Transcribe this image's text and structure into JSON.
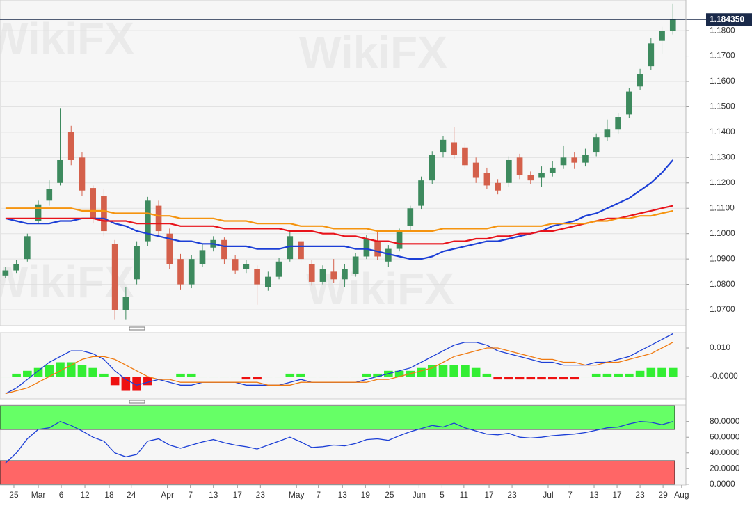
{
  "chart_data": [
    {
      "type": "candlestick",
      "watermark": "WikiFX",
      "xlim": [
        0,
        62.5
      ],
      "ylim": [
        1.0637,
        1.1921
      ],
      "yticks": [
        {
          "value": 1.07,
          "label": "1.0700"
        },
        {
          "value": 1.08,
          "label": "1.0800"
        },
        {
          "value": 1.09,
          "label": "1.0900"
        },
        {
          "value": 1.1,
          "label": "1.1000"
        },
        {
          "value": 1.11,
          "label": "1.1100"
        },
        {
          "value": 1.12,
          "label": "1.1200"
        },
        {
          "value": 1.13,
          "label": "1.1300"
        },
        {
          "value": 1.14,
          "label": "1.1400"
        },
        {
          "value": 1.15,
          "label": "1.1500"
        },
        {
          "value": 1.16,
          "label": "1.1600"
        },
        {
          "value": 1.17,
          "label": "1.1700"
        },
        {
          "value": 1.18,
          "label": "1.1800"
        }
      ],
      "grid": true,
      "last_price": {
        "value": 1.18435,
        "label": "1.184350"
      },
      "up_color": "#3d8a5e",
      "down_color": "#d4604b",
      "open": [
        1.0835,
        1.0855,
        1.09,
        1.105,
        1.113,
        1.12,
        1.14,
        1.13,
        1.118,
        1.115,
        1.096,
        1.07,
        1.082,
        1.097,
        1.111,
        1.1,
        1.09,
        1.08,
        1.088,
        1.0945,
        1.0975,
        1.09,
        1.086,
        1.086,
        1.079,
        1.083,
        1.09,
        1.097,
        1.088,
        1.081,
        1.085,
        1.082,
        1.084,
        1.091,
        1.097,
        1.089,
        1.094,
        1.103,
        1.111,
        1.121,
        1.132,
        1.136,
        1.134,
        1.128,
        1.124,
        1.12,
        1.12,
        1.13,
        1.123,
        1.122,
        1.124,
        1.127,
        1.13,
        1.128,
        1.132,
        1.138,
        1.141,
        1.147,
        1.158,
        1.166,
        1.176,
        1.18
      ],
      "high": [
        1.087,
        1.0895,
        1.1,
        1.113,
        1.121,
        1.1495,
        1.1425,
        1.132,
        1.119,
        1.1175,
        1.0975,
        1.079,
        1.097,
        1.1145,
        1.113,
        1.102,
        1.092,
        1.0915,
        1.096,
        1.099,
        1.0985,
        1.0915,
        1.0895,
        1.0875,
        1.085,
        1.0905,
        1.1015,
        1.0985,
        1.0895,
        1.0875,
        1.09,
        1.088,
        1.0925,
        1.0995,
        1.1005,
        1.0955,
        1.102,
        1.111,
        1.1225,
        1.1325,
        1.1385,
        1.142,
        1.1355,
        1.13,
        1.126,
        1.1215,
        1.1305,
        1.1315,
        1.1245,
        1.1265,
        1.1285,
        1.1345,
        1.132,
        1.1335,
        1.1395,
        1.145,
        1.1475,
        1.1575,
        1.165,
        1.177,
        1.1815,
        1.1905
      ],
      "low": [
        1.0825,
        1.0845,
        1.089,
        1.104,
        1.111,
        1.119,
        1.127,
        1.115,
        1.104,
        1.099,
        1.066,
        1.066,
        1.08,
        1.095,
        1.099,
        1.086,
        1.078,
        1.0785,
        1.087,
        1.093,
        1.088,
        1.084,
        1.0845,
        1.072,
        1.0775,
        1.082,
        1.089,
        1.0885,
        1.0795,
        1.08,
        1.0805,
        1.079,
        1.083,
        1.09,
        1.0895,
        1.087,
        1.093,
        1.1015,
        1.1095,
        1.1195,
        1.13,
        1.1295,
        1.1255,
        1.12,
        1.1175,
        1.1155,
        1.1185,
        1.1215,
        1.1195,
        1.1185,
        1.1225,
        1.1255,
        1.1255,
        1.1265,
        1.1305,
        1.1365,
        1.1395,
        1.1455,
        1.1565,
        1.1645,
        1.171,
        1.1785
      ],
      "close": [
        1.0855,
        1.088,
        1.099,
        1.1115,
        1.1175,
        1.129,
        1.129,
        1.117,
        1.106,
        1.101,
        1.07,
        1.075,
        1.095,
        1.113,
        1.101,
        1.088,
        1.08,
        1.09,
        1.0935,
        1.0975,
        1.09,
        1.0855,
        1.088,
        1.08,
        1.083,
        1.089,
        1.099,
        1.09,
        1.081,
        1.086,
        1.082,
        1.086,
        1.091,
        1.098,
        1.091,
        1.094,
        1.101,
        1.11,
        1.121,
        1.131,
        1.137,
        1.131,
        1.127,
        1.122,
        1.119,
        1.117,
        1.129,
        1.123,
        1.121,
        1.124,
        1.126,
        1.13,
        1.128,
        1.131,
        1.138,
        1.141,
        1.146,
        1.156,
        1.163,
        1.175,
        1.18,
        1.18435
      ],
      "series": [
        {
          "color": "#1c3fd6",
          "values": [
            1.106,
            1.105,
            1.104,
            1.104,
            1.104,
            1.105,
            1.105,
            1.106,
            1.106,
            1.106,
            1.104,
            1.103,
            1.101,
            1.1,
            1.099,
            1.098,
            1.097,
            1.097,
            1.096,
            1.096,
            1.095,
            1.095,
            1.095,
            1.094,
            1.094,
            1.094,
            1.095,
            1.095,
            1.095,
            1.095,
            1.095,
            1.095,
            1.094,
            1.094,
            1.093,
            1.092,
            1.091,
            1.09,
            1.09,
            1.091,
            1.093,
            1.094,
            1.095,
            1.096,
            1.097,
            1.097,
            1.098,
            1.099,
            1.1,
            1.101,
            1.103,
            1.104,
            1.105,
            1.107,
            1.108,
            1.11,
            1.112,
            1.114,
            1.117,
            1.12,
            1.124,
            1.129
          ]
        },
        {
          "color": "#e8131b",
          "values": [
            1.106,
            1.106,
            1.106,
            1.106,
            1.106,
            1.106,
            1.106,
            1.106,
            1.106,
            1.105,
            1.105,
            1.105,
            1.104,
            1.104,
            1.104,
            1.104,
            1.103,
            1.103,
            1.103,
            1.103,
            1.102,
            1.102,
            1.102,
            1.102,
            1.102,
            1.102,
            1.101,
            1.101,
            1.101,
            1.1,
            1.1,
            1.099,
            1.099,
            1.098,
            1.097,
            1.097,
            1.096,
            1.096,
            1.096,
            1.096,
            1.096,
            1.097,
            1.097,
            1.098,
            1.098,
            1.099,
            1.099,
            1.1,
            1.1,
            1.101,
            1.101,
            1.102,
            1.103,
            1.104,
            1.105,
            1.106,
            1.106,
            1.107,
            1.108,
            1.109,
            1.11,
            1.111
          ]
        },
        {
          "color": "#f5940f",
          "values": [
            1.11,
            1.11,
            1.11,
            1.11,
            1.11,
            1.11,
            1.11,
            1.109,
            1.109,
            1.109,
            1.108,
            1.108,
            1.108,
            1.108,
            1.107,
            1.107,
            1.106,
            1.106,
            1.106,
            1.106,
            1.105,
            1.105,
            1.105,
            1.104,
            1.104,
            1.104,
            1.104,
            1.103,
            1.103,
            1.103,
            1.102,
            1.102,
            1.102,
            1.102,
            1.101,
            1.101,
            1.101,
            1.101,
            1.101,
            1.101,
            1.102,
            1.102,
            1.102,
            1.102,
            1.102,
            1.103,
            1.103,
            1.103,
            1.103,
            1.103,
            1.104,
            1.104,
            1.104,
            1.104,
            1.105,
            1.105,
            1.106,
            1.106,
            1.107,
            1.107,
            1.108,
            1.109
          ]
        }
      ]
    },
    {
      "type": "macd",
      "xlim": [
        0,
        62.5
      ],
      "ylim": [
        -0.0078,
        0.01537
      ],
      "yticks": [
        {
          "value": 0.01,
          "label": "0.010"
        },
        {
          "value": 0,
          "label": "-0.0000"
        }
      ],
      "up_color": "#33ee33",
      "down_color": "#ee1111",
      "histogram": [
        0.0,
        0.001,
        0.002,
        0.003,
        0.004,
        0.005,
        0.005,
        0.004,
        0.003,
        0.001,
        -0.003,
        -0.005,
        -0.005,
        -0.003,
        0.0,
        0.0,
        0.001,
        0.001,
        0.0,
        0.0,
        0.0,
        0.0,
        -0.001,
        -0.001,
        0.0,
        0.0,
        0.001,
        0.001,
        0.0,
        0.0,
        0.0,
        0.0,
        0.0,
        0.001,
        0.001,
        0.002,
        0.002,
        0.002,
        0.003,
        0.004,
        0.004,
        0.004,
        0.004,
        0.003,
        0.001,
        -0.001,
        -0.001,
        -0.001,
        -0.001,
        -0.001,
        -0.001,
        -0.001,
        -0.001,
        0.0,
        0.001,
        0.001,
        0.001,
        0.001,
        0.002,
        0.003,
        0.003,
        0.003
      ],
      "series": [
        {
          "color": "#1c3fd6",
          "values": [
            -0.006,
            -0.004,
            -0.001,
            0.002,
            0.005,
            0.007,
            0.009,
            0.009,
            0.008,
            0.006,
            0.002,
            -0.001,
            -0.003,
            -0.002,
            -0.001,
            -0.002,
            -0.003,
            -0.003,
            -0.002,
            -0.002,
            -0.002,
            -0.002,
            -0.003,
            -0.003,
            -0.003,
            -0.003,
            -0.002,
            -0.001,
            -0.002,
            -0.002,
            -0.002,
            -0.002,
            -0.002,
            -0.001,
            0.0,
            0.001,
            0.002,
            0.003,
            0.005,
            0.007,
            0.009,
            0.011,
            0.012,
            0.012,
            0.011,
            0.009,
            0.008,
            0.007,
            0.006,
            0.005,
            0.005,
            0.004,
            0.004,
            0.004,
            0.005,
            0.005,
            0.006,
            0.007,
            0.009,
            0.011,
            0.013,
            0.015
          ]
        },
        {
          "color": "#f07a10",
          "values": [
            -0.006,
            -0.005,
            -0.004,
            -0.002,
            0.0,
            0.002,
            0.004,
            0.006,
            0.007,
            0.007,
            0.006,
            0.004,
            0.002,
            0.0,
            -0.001,
            -0.001,
            -0.002,
            -0.002,
            -0.002,
            -0.002,
            -0.002,
            -0.002,
            -0.002,
            -0.002,
            -0.003,
            -0.003,
            -0.003,
            -0.002,
            -0.002,
            -0.002,
            -0.002,
            -0.002,
            -0.002,
            -0.002,
            -0.001,
            -0.001,
            0.0,
            0.001,
            0.002,
            0.003,
            0.005,
            0.007,
            0.008,
            0.009,
            0.01,
            0.01,
            0.009,
            0.008,
            0.007,
            0.006,
            0.006,
            0.005,
            0.005,
            0.004,
            0.004,
            0.005,
            0.005,
            0.006,
            0.007,
            0.008,
            0.01,
            0.012
          ]
        }
      ]
    },
    {
      "type": "rsi",
      "xlim": [
        0,
        62.5
      ],
      "ylim": [
        -1,
        101
      ],
      "yticks": [
        {
          "value": 0,
          "label": "0.0000"
        },
        {
          "value": 20,
          "label": "20.0000"
        },
        {
          "value": 40,
          "label": "40.0000"
        },
        {
          "value": 60,
          "label": "60.0000"
        },
        {
          "value": 80,
          "label": "80.0000"
        }
      ],
      "bands": [
        {
          "range": [
            70,
            100
          ],
          "color": "#66ff66"
        },
        {
          "range": [
            0,
            30
          ],
          "color": "#ff6666"
        }
      ],
      "series": [
        {
          "color": "#1c3fd6",
          "values": [
            27,
            40,
            58,
            70,
            72,
            80,
            75,
            68,
            60,
            55,
            40,
            35,
            38,
            55,
            58,
            50,
            46,
            50,
            54,
            57,
            53,
            50,
            48,
            45,
            50,
            55,
            60,
            54,
            47,
            48,
            50,
            49,
            52,
            57,
            58,
            56,
            62,
            67,
            71,
            75,
            73,
            78,
            72,
            68,
            64,
            63,
            65,
            60,
            59,
            60,
            62,
            63,
            64,
            66,
            69,
            72,
            73,
            77,
            80,
            79,
            76,
            80
          ]
        }
      ],
      "xticks": [
        {
          "value": 1.27,
          "label": "25"
        },
        {
          "value": 3.5,
          "label": "Mar"
        },
        {
          "value": 5.6,
          "label": "6"
        },
        {
          "value": 7.76,
          "label": "12"
        },
        {
          "value": 9.98,
          "label": "18"
        },
        {
          "value": 12.0,
          "label": "24"
        },
        {
          "value": 15.3,
          "label": "Apr"
        },
        {
          "value": 17.4,
          "label": "7"
        },
        {
          "value": 19.5,
          "label": "13"
        },
        {
          "value": 21.7,
          "label": "17"
        },
        {
          "value": 23.8,
          "label": "23"
        },
        {
          "value": 27.1,
          "label": "May"
        },
        {
          "value": 29.1,
          "label": "7"
        },
        {
          "value": 31.3,
          "label": "13"
        },
        {
          "value": 33.4,
          "label": "19"
        },
        {
          "value": 35.6,
          "label": "25"
        },
        {
          "value": 38.3,
          "label": "Jun"
        },
        {
          "value": 40.4,
          "label": "5"
        },
        {
          "value": 42.4,
          "label": "11"
        },
        {
          "value": 44.7,
          "label": "17"
        },
        {
          "value": 46.8,
          "label": "23"
        },
        {
          "value": 50.1,
          "label": "Jul"
        },
        {
          "value": 52.1,
          "label": "7"
        },
        {
          "value": 54.3,
          "label": "13"
        },
        {
          "value": 56.4,
          "label": "17"
        },
        {
          "value": 58.5,
          "label": "23"
        },
        {
          "value": 60.6,
          "label": "29"
        },
        {
          "value": 62.3,
          "label": "Aug"
        }
      ]
    }
  ]
}
